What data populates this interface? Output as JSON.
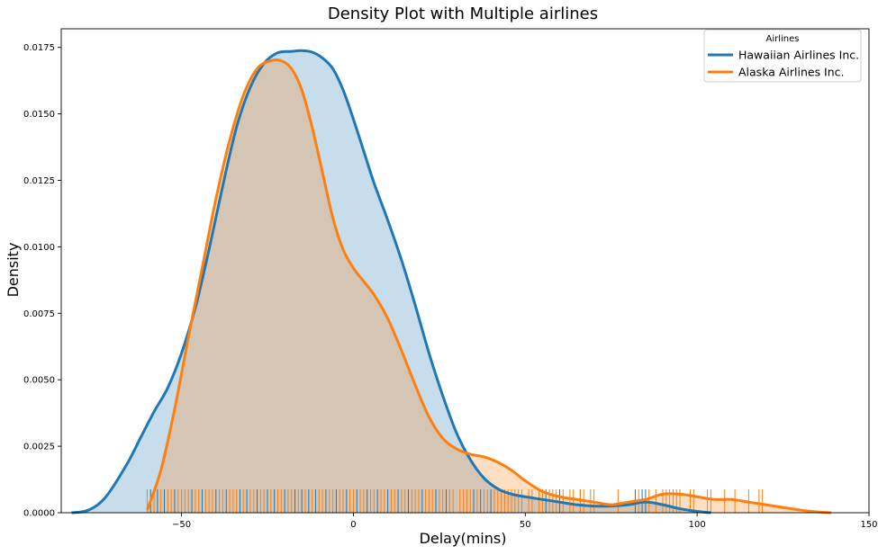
{
  "chart_data": {
    "type": "area",
    "title": "Density Plot with Multiple airlines",
    "xlabel": "Delay(mins)",
    "ylabel": "Density",
    "xlim": [
      -85,
      150
    ],
    "ylim": [
      0,
      0.0182
    ],
    "xticks": [
      -50,
      0,
      50,
      100,
      150
    ],
    "xtick_labels": [
      "−50",
      "0",
      "50",
      "100",
      "150"
    ],
    "yticks": [
      0,
      0.0025,
      0.005,
      0.0075,
      0.01,
      0.0125,
      0.015,
      0.0175
    ],
    "ytick_labels": [
      "0.0000",
      "0.0025",
      "0.0050",
      "0.0075",
      "0.0100",
      "0.0125",
      "0.0150",
      "0.0175"
    ],
    "grid": false,
    "legend": {
      "title": "Airlines",
      "placement": "top-right"
    },
    "series": [
      {
        "name": "Hawaiian Airlines Inc.",
        "color": "#1f77b4",
        "x": [
          -82,
          -77,
          -72,
          -66,
          -62,
          -58,
          -54,
          -50,
          -46,
          -42,
          -38,
          -34,
          -30,
          -26,
          -22,
          -18,
          -15,
          -12,
          -9,
          -6,
          -3,
          0,
          3,
          6,
          10,
          14,
          18,
          22,
          26,
          30,
          34,
          38,
          42,
          46,
          50,
          55,
          60,
          65,
          70,
          75,
          80,
          85,
          90,
          95,
          100,
          104
        ],
        "y": [
          0,
          0.0001,
          0.0006,
          0.0018,
          0.0028,
          0.0038,
          0.0047,
          0.006,
          0.0077,
          0.0099,
          0.0123,
          0.0145,
          0.016,
          0.0169,
          0.0173,
          0.01735,
          0.01738,
          0.01732,
          0.0171,
          0.0167,
          0.0159,
          0.0148,
          0.0136,
          0.0124,
          0.011,
          0.0095,
          0.0078,
          0.006,
          0.0044,
          0.003,
          0.002,
          0.0013,
          0.0009,
          0.0007,
          0.0006,
          0.0005,
          0.0004,
          0.0003,
          0.00025,
          0.00025,
          0.0003,
          0.0004,
          0.0003,
          0.00015,
          5e-05,
          0
        ]
      },
      {
        "name": "Alaska Airlines Inc.",
        "color": "#ff7f0e",
        "x": [
          -60,
          -56,
          -52,
          -48,
          -44,
          -40,
          -36,
          -32,
          -28,
          -24,
          -21,
          -18,
          -15,
          -12,
          -9,
          -6,
          -3,
          0,
          3,
          6,
          10,
          14,
          18,
          22,
          26,
          30,
          34,
          38,
          42,
          46,
          50,
          55,
          60,
          65,
          70,
          75,
          80,
          85,
          90,
          95,
          100,
          105,
          110,
          115,
          120,
          125,
          130,
          135,
          139
        ],
        "y": [
          0.0001,
          0.0016,
          0.0039,
          0.0066,
          0.0092,
          0.0118,
          0.014,
          0.0157,
          0.0167,
          0.017,
          0.017,
          0.0167,
          0.0159,
          0.0145,
          0.0128,
          0.0111,
          0.0099,
          0.0092,
          0.0087,
          0.0082,
          0.0073,
          0.0061,
          0.0048,
          0.0036,
          0.0028,
          0.0024,
          0.0022,
          0.0021,
          0.0019,
          0.0016,
          0.0012,
          0.0008,
          0.0006,
          0.0005,
          0.0004,
          0.0003,
          0.0004,
          0.0005,
          0.0007,
          0.0007,
          0.0006,
          0.0005,
          0.0005,
          0.0004,
          0.0003,
          0.0002,
          0.0001,
          3e-05,
          0
        ]
      }
    ],
    "rug": [
      {
        "series": "Hawaiian Airlines Inc.",
        "color": "#1f77b4",
        "values": [
          -59,
          -57,
          -55,
          -52,
          -47,
          -44,
          -40,
          -37,
          -33,
          -31,
          -28,
          -25,
          -23,
          -20,
          -17,
          -15,
          -13,
          -11,
          -8,
          -5,
          -2,
          1,
          4,
          7,
          10,
          13,
          16,
          20,
          24,
          27,
          35,
          37,
          40,
          56,
          60,
          66,
          82,
          84,
          85
        ]
      },
      {
        "series": "Alaska Airlines Inc.",
        "color": "#ff7f0e",
        "values": [
          -60,
          -58,
          -56,
          -54,
          -53,
          -51,
          -50,
          -49,
          -48,
          -46,
          -45,
          -43,
          -42,
          -41,
          -39,
          -38,
          -36,
          -35,
          -34,
          -32,
          -30,
          -29,
          -27,
          -26,
          -24,
          -22,
          -21,
          -19,
          -18,
          -16,
          -14,
          -12,
          -10,
          -9,
          -7,
          -6,
          -4,
          -3,
          -1,
          0,
          2,
          3,
          5,
          6,
          8,
          9,
          11,
          12,
          14,
          15,
          17,
          18,
          19,
          21,
          22,
          23,
          25,
          26,
          28,
          29,
          31,
          32,
          33,
          34,
          36,
          38,
          39,
          41,
          42,
          43,
          44,
          45,
          46,
          47,
          48,
          49,
          51,
          52,
          54,
          55,
          57,
          58,
          59,
          61,
          63,
          64,
          66,
          67,
          69,
          70,
          77,
          83,
          86,
          88,
          90,
          91,
          92,
          93,
          94,
          95,
          98,
          99,
          103,
          104,
          108,
          111,
          115,
          118,
          119
        ]
      }
    ]
  }
}
